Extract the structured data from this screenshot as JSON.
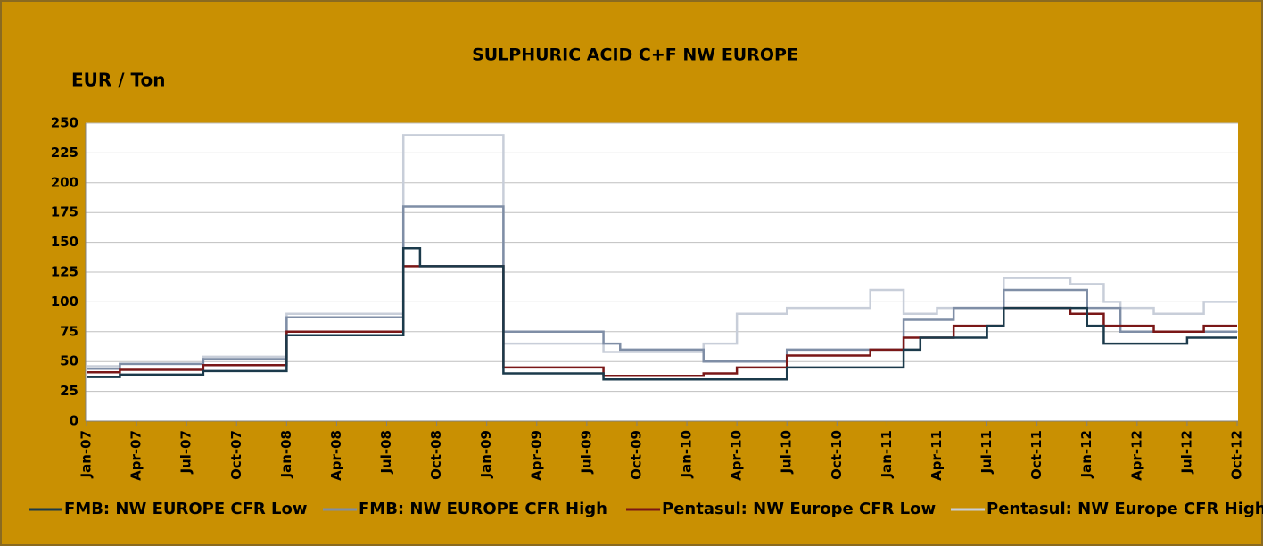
{
  "chart_data": {
    "type": "line",
    "step": true,
    "title": "SULPHURIC ACID C+F NW EUROPE",
    "y_label": "EUR / Ton",
    "categories": [
      "Jan-07",
      null,
      null,
      "Apr-07",
      null,
      null,
      "Jul-07",
      null,
      null,
      "Oct-07",
      null,
      null,
      "Jan-08",
      null,
      null,
      "Apr-08",
      null,
      null,
      "Jul-08",
      null,
      null,
      "Oct-08",
      null,
      null,
      "Jan-09",
      null,
      null,
      "Apr-09",
      null,
      null,
      "Jul-09",
      null,
      null,
      "Oct-09",
      null,
      null,
      "Jan-10",
      null,
      null,
      "Apr-10",
      null,
      null,
      "Jul-10",
      null,
      null,
      "Oct-10",
      null,
      null,
      "Jan-11",
      null,
      null,
      "Apr-11",
      null,
      null,
      "Jul-11",
      null,
      null,
      "Oct-11",
      null,
      null,
      "Jan-12",
      null,
      null,
      "Apr-12",
      null,
      null,
      "Jul-12",
      null,
      null,
      "Oct-12"
    ],
    "series": [
      {
        "name": "FMB: NW EUROPE CFR Low",
        "color": "#1b3a4b",
        "values": [
          37,
          37,
          39,
          39,
          39,
          39,
          39,
          42,
          42,
          42,
          42,
          42,
          72,
          72,
          72,
          72,
          72,
          72,
          72,
          145,
          130,
          130,
          130,
          130,
          130,
          40,
          40,
          40,
          40,
          40,
          40,
          35,
          35,
          35,
          35,
          35,
          35,
          35,
          35,
          35,
          35,
          35,
          45,
          45,
          45,
          45,
          45,
          45,
          45,
          60,
          70,
          70,
          70,
          70,
          80,
          95,
          95,
          95,
          95,
          95,
          80,
          65,
          65,
          65,
          65,
          65,
          70,
          70,
          70,
          70
        ]
      },
      {
        "name": "FMB: NW EUROPE CFR High",
        "color": "#7f8ea6",
        "values": [
          44,
          44,
          48,
          48,
          48,
          48,
          48,
          52,
          52,
          52,
          52,
          52,
          87,
          87,
          87,
          87,
          87,
          87,
          87,
          180,
          180,
          180,
          180,
          180,
          180,
          75,
          75,
          75,
          75,
          75,
          75,
          65,
          60,
          60,
          60,
          60,
          60,
          50,
          50,
          50,
          50,
          50,
          60,
          60,
          60,
          60,
          60,
          60,
          60,
          85,
          85,
          85,
          95,
          95,
          95,
          110,
          110,
          110,
          110,
          110,
          95,
          95,
          75,
          75,
          75,
          75,
          75,
          75,
          75,
          75
        ]
      },
      {
        "name": "Pentasul: NW Europe CFR Low",
        "color": "#7a1717",
        "values": [
          41,
          41,
          43,
          43,
          43,
          43,
          43,
          47,
          47,
          47,
          47,
          47,
          75,
          75,
          75,
          75,
          75,
          75,
          75,
          130,
          130,
          130,
          130,
          130,
          130,
          45,
          45,
          45,
          45,
          45,
          45,
          38,
          38,
          38,
          38,
          38,
          38,
          40,
          40,
          45,
          45,
          45,
          55,
          55,
          55,
          55,
          55,
          60,
          60,
          70,
          70,
          70,
          80,
          80,
          80,
          95,
          95,
          95,
          95,
          90,
          90,
          80,
          80,
          80,
          75,
          75,
          75,
          80,
          80,
          80
        ]
      },
      {
        "name": "Pentasul: NW Europe CFR High",
        "color": "#c8ced9",
        "values": [
          46,
          46,
          48,
          48,
          48,
          48,
          48,
          54,
          54,
          54,
          54,
          54,
          90,
          90,
          90,
          90,
          90,
          90,
          90,
          240,
          240,
          240,
          240,
          240,
          240,
          65,
          65,
          65,
          65,
          65,
          65,
          58,
          58,
          58,
          58,
          58,
          58,
          65,
          65,
          90,
          90,
          90,
          95,
          95,
          95,
          95,
          95,
          110,
          110,
          90,
          90,
          95,
          95,
          95,
          95,
          120,
          120,
          120,
          120,
          115,
          115,
          100,
          95,
          95,
          90,
          90,
          90,
          100,
          100,
          100
        ]
      }
    ],
    "ylim": [
      0,
      250
    ],
    "yticks": [
      0,
      25,
      50,
      75,
      100,
      125,
      150,
      175,
      200,
      225,
      250
    ],
    "grid": true,
    "legend": "bottom"
  }
}
